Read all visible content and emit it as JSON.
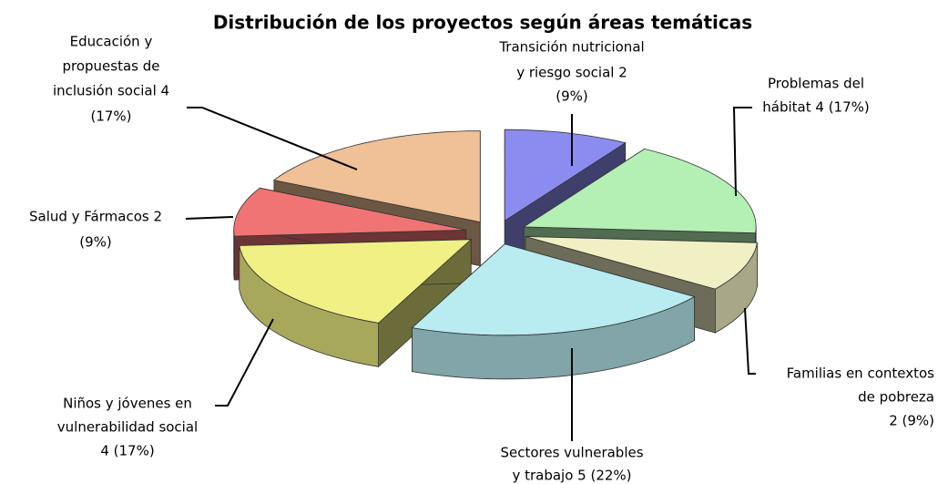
{
  "chart_data": {
    "type": "pie3d",
    "title": "Distribución de los proyectos según áreas temáticas",
    "categories": [
      "Transición nutricional y riesgo social",
      "Problemas del hábitat",
      "Familias en contextos de pobreza",
      "Sectores vulnerables y trabajo",
      "Niños y jóvenes en vulnerabilidad social",
      "Salud y Fármacos",
      "Educación y propuestas de inclusión social"
    ],
    "values": [
      2,
      4,
      2,
      5,
      4,
      2,
      4
    ],
    "labels": [
      [
        "Transición nutricional",
        "y riesgo social 2",
        "(9%)"
      ],
      [
        "Problemas del",
        "hábitat  4 (17%)"
      ],
      [
        "Familias en contextos",
        "de pobreza",
        "2  (9%)"
      ],
      [
        "Sectores vulnerables",
        "y trabajo  5  (22%)"
      ],
      [
        "Niños y jóvenes en",
        "vulnerabilidad social",
        "4 (17%)"
      ],
      [
        "Salud y Fármacos  2",
        "(9%)"
      ],
      [
        "Educación y",
        "propuestas de",
        "inclusión social  4",
        "(17%)"
      ]
    ],
    "colors": [
      "#8c8cf0",
      "#b4f0b4",
      "#f0f0c4",
      "#b8ecf0",
      "#f0f084",
      "#f07474",
      "#f0c096"
    ]
  }
}
